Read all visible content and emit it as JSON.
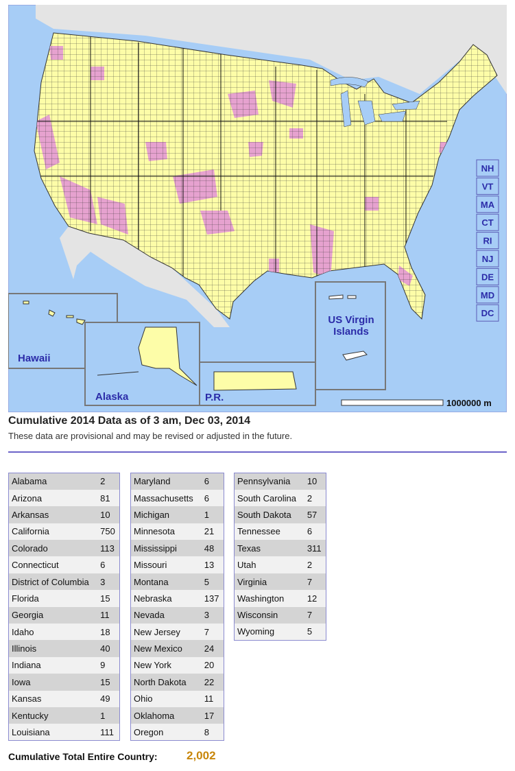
{
  "map": {
    "state_buttons": [
      "NH",
      "VT",
      "MA",
      "CT",
      "RI",
      "NJ",
      "DE",
      "MD",
      "DC"
    ],
    "insets": {
      "hawaii": "Hawaii",
      "alaska": "Alaska",
      "pr": "P.R.",
      "usvi": "US Virgin Islands"
    },
    "scale_label": "1000000 m"
  },
  "header": {
    "title": "Cumulative 2014 Data as of 3 am, Dec 03, 2014",
    "subtitle": "These data are provisional and may be revised or adjusted in the future."
  },
  "tables": [
    {
      "rows": [
        [
          "Alabama",
          2
        ],
        [
          "Arizona",
          81
        ],
        [
          "Arkansas",
          10
        ],
        [
          "California",
          750
        ],
        [
          "Colorado",
          113
        ],
        [
          "Connecticut",
          6
        ],
        [
          "District of Columbia",
          3
        ],
        [
          "Florida",
          15
        ],
        [
          "Georgia",
          11
        ],
        [
          "Idaho",
          18
        ],
        [
          "Illinois",
          40
        ],
        [
          "Indiana",
          9
        ],
        [
          "Iowa",
          15
        ],
        [
          "Kansas",
          49
        ],
        [
          "Kentucky",
          1
        ],
        [
          "Louisiana",
          111
        ]
      ]
    },
    {
      "rows": [
        [
          "Maryland",
          6
        ],
        [
          "Massachusetts",
          6
        ],
        [
          "Michigan",
          1
        ],
        [
          "Minnesota",
          21
        ],
        [
          "Mississippi",
          48
        ],
        [
          "Missouri",
          13
        ],
        [
          "Montana",
          5
        ],
        [
          "Nebraska",
          137
        ],
        [
          "Nevada",
          3
        ],
        [
          "New Jersey",
          7
        ],
        [
          "New Mexico",
          24
        ],
        [
          "New York",
          20
        ],
        [
          "North Dakota",
          22
        ],
        [
          "Ohio",
          11
        ],
        [
          "Oklahoma",
          17
        ],
        [
          "Oregon",
          8
        ]
      ]
    },
    {
      "rows": [
        [
          "Pennsylvania",
          10
        ],
        [
          "South Carolina",
          2
        ],
        [
          "South Dakota",
          57
        ],
        [
          "Tennessee",
          6
        ],
        [
          "Texas",
          311
        ],
        [
          "Utah",
          2
        ],
        [
          "Virginia",
          7
        ],
        [
          "Washington",
          12
        ],
        [
          "Wisconsin",
          7
        ],
        [
          "Wyoming",
          5
        ]
      ]
    }
  ],
  "total": {
    "label": "Cumulative Total Entire Country:",
    "value": "2,002"
  }
}
